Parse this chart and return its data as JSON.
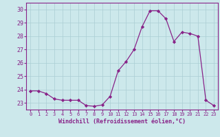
{
  "x": [
    0,
    1,
    2,
    3,
    4,
    5,
    6,
    7,
    8,
    9,
    10,
    11,
    12,
    13,
    14,
    15,
    16,
    17,
    18,
    19,
    20,
    21,
    22,
    23
  ],
  "y": [
    23.9,
    23.9,
    23.7,
    23.3,
    23.2,
    23.2,
    23.2,
    22.8,
    22.75,
    22.85,
    23.5,
    25.4,
    26.1,
    27.0,
    28.7,
    29.9,
    29.9,
    29.3,
    27.6,
    28.3,
    28.2,
    28.0,
    23.2,
    22.8
  ],
  "line_color": "#882288",
  "marker": "D",
  "marker_size": 2.2,
  "bg_color": "#cce8eb",
  "grid_color": "#aacdd4",
  "xlabel": "Windchill (Refroidissement éolien,°C)",
  "ylim": [
    22.5,
    30.5
  ],
  "yticks": [
    23,
    24,
    25,
    26,
    27,
    28,
    29,
    30
  ],
  "xlim": [
    -0.5,
    23.5
  ],
  "xticks": [
    0,
    1,
    2,
    3,
    4,
    5,
    6,
    7,
    8,
    9,
    10,
    11,
    12,
    13,
    14,
    15,
    16,
    17,
    18,
    19,
    20,
    21,
    22,
    23
  ],
  "tick_color": "#882288",
  "label_color": "#882288",
  "spine_color": "#882288"
}
